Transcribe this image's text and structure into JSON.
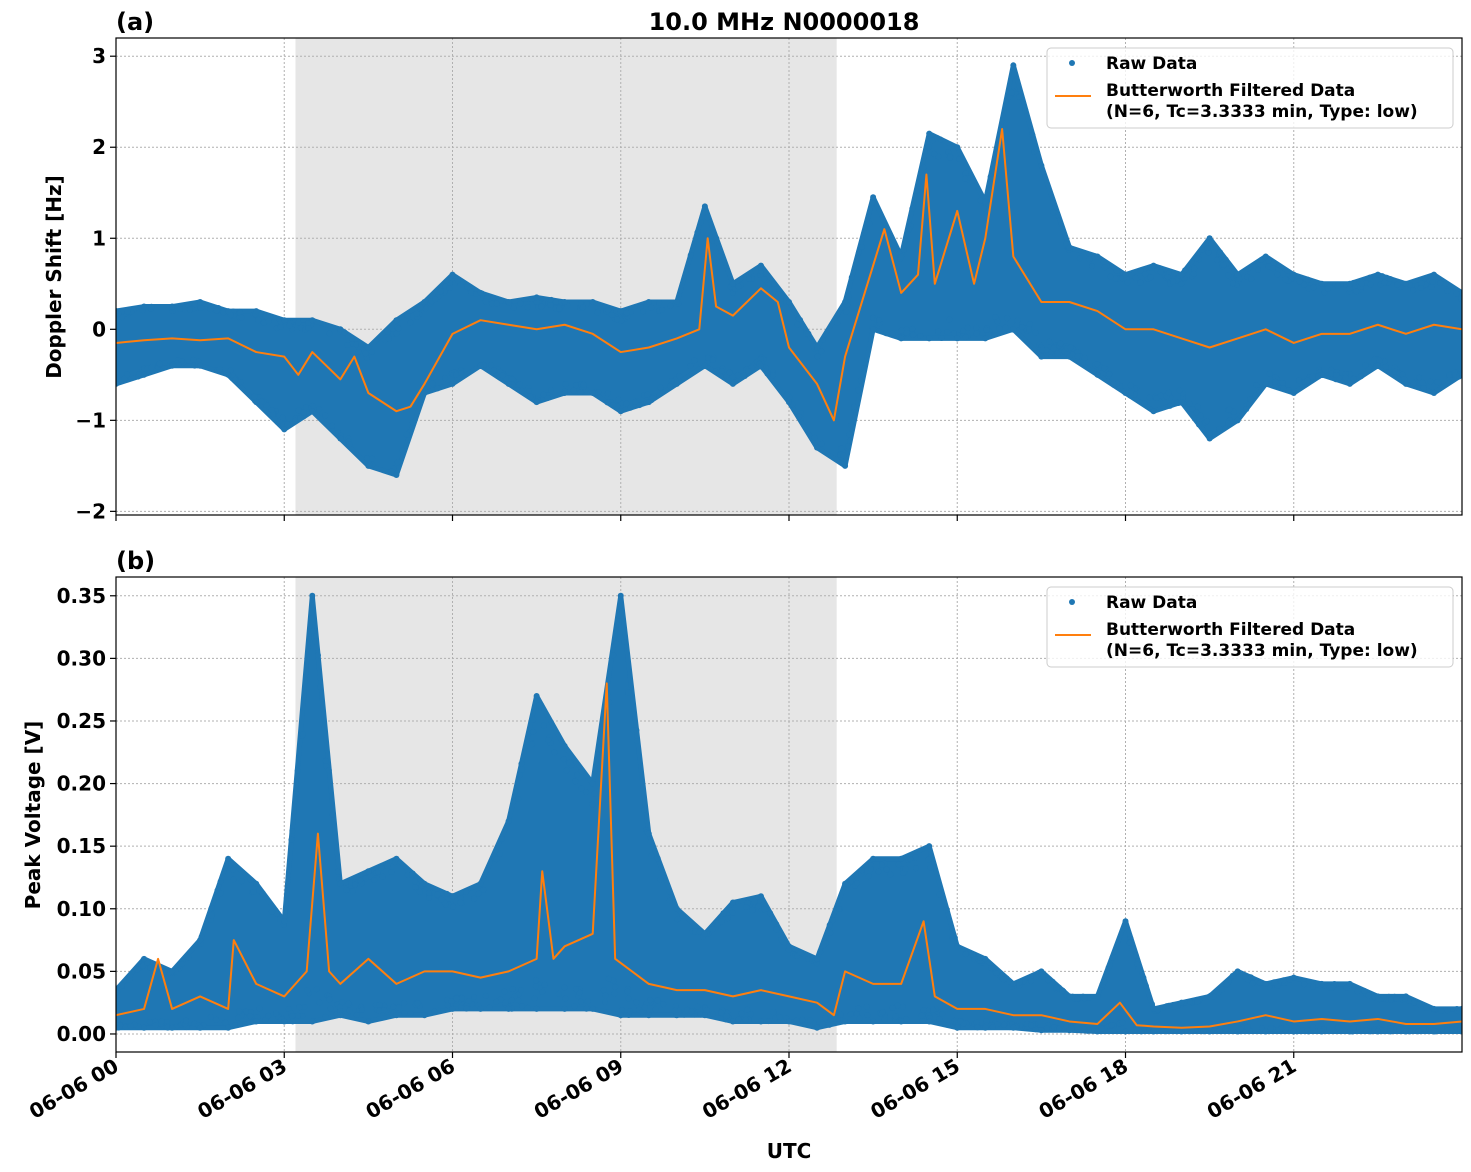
{
  "title": "10.0 MHz N0000018",
  "colors": {
    "raw": "#1f77b4",
    "filtered": "#ff7f0e",
    "shade": "#e6e6e6",
    "grid": "#b0b0b0"
  },
  "chart_data": [
    {
      "type": "scatter",
      "panel_label": "(a)",
      "title": "10.0 MHz N0000018",
      "xlabel": "",
      "ylabel": "Doppler Shift [Hz]",
      "x_unit": "hours UTC on 06-06",
      "xlim": [
        0,
        24
      ],
      "ylim": [
        -2.04,
        3.2
      ],
      "grid": true,
      "legend_position": "top-right",
      "shaded_interval": [
        3.2,
        12.85
      ],
      "x_ticks": [
        0,
        3,
        6,
        9,
        12,
        15,
        18,
        21
      ],
      "x_tick_labels": [
        "06-06 00",
        "06-06 03",
        "06-06 06",
        "06-06 09",
        "06-06 12",
        "06-06 15",
        "06-06 18",
        "06-06 21"
      ],
      "y_ticks": [
        3,
        2,
        1,
        0,
        -1,
        -2
      ],
      "y_tick_labels": [
        "3",
        "2",
        "1",
        "0",
        "−1",
        "−2"
      ],
      "legend": [
        "Raw Data",
        "Butterworth Filtered Data",
        "(N=6, Tc=3.3333 min, Type: low)"
      ],
      "series": [
        {
          "name": "Raw Data",
          "kind": "points-envelope",
          "x": [
            0,
            0.5,
            1,
            1.5,
            2,
            2.5,
            3,
            3.5,
            4,
            4.5,
            5,
            5.5,
            6,
            6.5,
            7,
            7.5,
            8,
            8.5,
            9,
            9.5,
            10,
            10.5,
            11,
            11.5,
            12,
            12.5,
            13,
            13.5,
            14,
            14.5,
            15,
            15.5,
            16,
            16.5,
            17,
            17.5,
            18,
            18.5,
            19,
            19.5,
            20,
            20.5,
            21,
            21.5,
            22,
            22.5,
            23,
            23.5,
            24
          ],
          "high": [
            0.2,
            0.25,
            0.25,
            0.3,
            0.2,
            0.2,
            0.1,
            0.1,
            0.0,
            -0.2,
            0.1,
            0.3,
            0.6,
            0.4,
            0.3,
            0.35,
            0.3,
            0.3,
            0.2,
            0.3,
            0.3,
            1.35,
            0.5,
            0.7,
            0.3,
            -0.2,
            0.3,
            1.45,
            0.8,
            2.15,
            2.0,
            1.4,
            2.9,
            1.8,
            0.9,
            0.8,
            0.6,
            0.7,
            0.6,
            1.0,
            0.6,
            0.8,
            0.6,
            0.5,
            0.5,
            0.6,
            0.5,
            0.6,
            0.4
          ],
          "low": [
            -0.6,
            -0.5,
            -0.4,
            -0.4,
            -0.5,
            -0.8,
            -1.1,
            -0.9,
            -1.2,
            -1.5,
            -1.6,
            -0.7,
            -0.6,
            -0.4,
            -0.6,
            -0.8,
            -0.7,
            -0.7,
            -0.9,
            -0.8,
            -0.6,
            -0.4,
            -0.6,
            -0.4,
            -0.8,
            -1.3,
            -1.5,
            0.0,
            -0.1,
            -0.1,
            -0.1,
            -0.1,
            0.0,
            -0.3,
            -0.3,
            -0.5,
            -0.7,
            -0.9,
            -0.8,
            -1.2,
            -1.0,
            -0.6,
            -0.7,
            -0.5,
            -0.6,
            -0.4,
            -0.6,
            -0.7,
            -0.5
          ]
        },
        {
          "name": "Butterworth Filtered Data (N=6, Tc=3.3333 min, Type: low)",
          "kind": "line",
          "x": [
            0,
            0.5,
            1,
            1.5,
            2,
            2.5,
            3,
            3.25,
            3.5,
            3.75,
            4,
            4.25,
            4.5,
            4.75,
            5,
            5.25,
            5.5,
            6,
            6.5,
            7,
            7.5,
            8,
            8.5,
            9,
            9.5,
            10,
            10.4,
            10.55,
            10.7,
            11,
            11.5,
            11.8,
            12,
            12.5,
            12.8,
            13,
            13.5,
            13.7,
            14,
            14.3,
            14.45,
            14.6,
            15,
            15.3,
            15.5,
            15.8,
            16,
            16.5,
            17,
            17.5,
            18,
            18.5,
            19,
            19.5,
            20,
            20.5,
            21,
            21.5,
            22,
            22.5,
            23,
            23.5,
            24
          ],
          "y": [
            -0.15,
            -0.12,
            -0.1,
            -0.12,
            -0.1,
            -0.25,
            -0.3,
            -0.5,
            -0.25,
            -0.4,
            -0.55,
            -0.3,
            -0.7,
            -0.8,
            -0.9,
            -0.85,
            -0.6,
            -0.05,
            0.1,
            0.05,
            0.0,
            0.05,
            -0.05,
            -0.25,
            -0.2,
            -0.1,
            0.0,
            1.0,
            0.25,
            0.15,
            0.45,
            0.3,
            -0.2,
            -0.6,
            -1.0,
            -0.3,
            0.7,
            1.1,
            0.4,
            0.6,
            1.7,
            0.5,
            1.3,
            0.5,
            1.0,
            2.2,
            0.8,
            0.3,
            0.3,
            0.2,
            0.0,
            0.0,
            -0.1,
            -0.2,
            -0.1,
            0.0,
            -0.15,
            -0.05,
            -0.05,
            0.05,
            -0.05,
            0.05,
            0.0
          ]
        }
      ]
    },
    {
      "type": "scatter",
      "panel_label": "(b)",
      "xlabel": "UTC",
      "ylabel": "Peak Voltage [V]",
      "x_unit": "hours UTC on 06-06",
      "xlim": [
        0,
        24
      ],
      "ylim": [
        -0.0144,
        0.365
      ],
      "grid": true,
      "legend_position": "top-right",
      "shaded_interval": [
        3.2,
        12.85
      ],
      "x_ticks": [
        0,
        3,
        6,
        9,
        12,
        15,
        18,
        21
      ],
      "x_tick_labels": [
        "06-06 00",
        "06-06 03",
        "06-06 06",
        "06-06 09",
        "06-06 12",
        "06-06 15",
        "06-06 18",
        "06-06 21"
      ],
      "y_ticks": [
        0.35,
        0.3,
        0.25,
        0.2,
        0.15,
        0.1,
        0.05,
        0.0
      ],
      "y_tick_labels": [
        "0.35",
        "0.30",
        "0.25",
        "0.20",
        "0.15",
        "0.10",
        "0.05",
        "0.00"
      ],
      "legend": [
        "Raw Data",
        "Butterworth Filtered Data",
        "(N=6, Tc=3.3333 min, Type: low)"
      ],
      "series": [
        {
          "name": "Raw Data",
          "kind": "points-envelope",
          "x": [
            0,
            0.5,
            1,
            1.5,
            2,
            2.5,
            3,
            3.5,
            4,
            4.5,
            5,
            5.5,
            6,
            6.5,
            7,
            7.5,
            8,
            8.5,
            9,
            9.5,
            10,
            10.5,
            11,
            11.5,
            12,
            12.5,
            13,
            13.5,
            14,
            14.5,
            15,
            15.5,
            16,
            16.5,
            17,
            17.5,
            18,
            18.5,
            19,
            19.5,
            20,
            20.5,
            21,
            21.5,
            22,
            22.5,
            23,
            23.5,
            24
          ],
          "high": [
            0.035,
            0.06,
            0.05,
            0.075,
            0.14,
            0.12,
            0.09,
            0.35,
            0.12,
            0.13,
            0.14,
            0.12,
            0.11,
            0.12,
            0.17,
            0.27,
            0.23,
            0.2,
            0.35,
            0.16,
            0.1,
            0.08,
            0.105,
            0.11,
            0.07,
            0.06,
            0.12,
            0.14,
            0.14,
            0.15,
            0.07,
            0.06,
            0.04,
            0.05,
            0.03,
            0.03,
            0.09,
            0.02,
            0.025,
            0.03,
            0.05,
            0.04,
            0.045,
            0.04,
            0.04,
            0.03,
            0.03,
            0.02,
            0.02
          ],
          "low": [
            0.005,
            0.005,
            0.005,
            0.005,
            0.005,
            0.01,
            0.01,
            0.01,
            0.015,
            0.01,
            0.015,
            0.015,
            0.02,
            0.02,
            0.02,
            0.02,
            0.02,
            0.02,
            0.015,
            0.015,
            0.015,
            0.015,
            0.01,
            0.01,
            0.01,
            0.005,
            0.01,
            0.01,
            0.01,
            0.01,
            0.005,
            0.005,
            0.005,
            0.003,
            0.003,
            0.002,
            0.002,
            0.002,
            0.002,
            0.002,
            0.002,
            0.002,
            0.002,
            0.002,
            0.002,
            0.002,
            0.002,
            0.002,
            0.002
          ]
        },
        {
          "name": "Butterworth Filtered Data (N=6, Tc=3.3333 min, Type: low)",
          "kind": "line",
          "x": [
            0,
            0.5,
            0.75,
            1,
            1.5,
            2,
            2.1,
            2.5,
            3,
            3.4,
            3.6,
            3.8,
            4,
            4.5,
            5,
            5.5,
            6,
            6.5,
            7,
            7.5,
            7.6,
            7.8,
            8,
            8.5,
            8.75,
            8.9,
            9.5,
            10,
            10.5,
            11,
            11.5,
            12,
            12.5,
            12.8,
            13,
            13.5,
            14,
            14.4,
            14.6,
            15,
            15.5,
            16,
            16.5,
            17,
            17.5,
            17.9,
            18.2,
            18.5,
            19,
            19.5,
            20,
            20.5,
            21,
            21.5,
            22,
            22.5,
            23,
            23.5,
            24
          ],
          "y": [
            0.015,
            0.02,
            0.06,
            0.02,
            0.03,
            0.02,
            0.075,
            0.04,
            0.03,
            0.05,
            0.16,
            0.05,
            0.04,
            0.06,
            0.04,
            0.05,
            0.05,
            0.045,
            0.05,
            0.06,
            0.13,
            0.06,
            0.07,
            0.08,
            0.28,
            0.06,
            0.04,
            0.035,
            0.035,
            0.03,
            0.035,
            0.03,
            0.025,
            0.015,
            0.05,
            0.04,
            0.04,
            0.09,
            0.03,
            0.02,
            0.02,
            0.015,
            0.015,
            0.01,
            0.008,
            0.025,
            0.007,
            0.006,
            0.005,
            0.006,
            0.01,
            0.015,
            0.01,
            0.012,
            0.01,
            0.012,
            0.008,
            0.008,
            0.01
          ]
        }
      ]
    }
  ]
}
